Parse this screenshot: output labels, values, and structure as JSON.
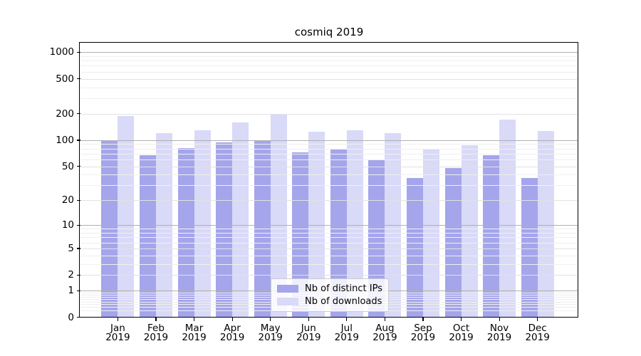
{
  "chart": {
    "title": "cosmiq 2019"
  },
  "chart_data": {
    "type": "bar",
    "title": "cosmiq 2019",
    "categories": [
      "Jan",
      "Feb",
      "Mar",
      "Apr",
      "May",
      "Jun",
      "Jul",
      "Aug",
      "Sep",
      "Oct",
      "Nov",
      "Dec"
    ],
    "category_year": "2019",
    "series": [
      {
        "name": "Nb of distinct IPs",
        "color": "#a5a5ec",
        "values": [
          100,
          67,
          81,
          94,
          98,
          73,
          80,
          60,
          37,
          48,
          67,
          37
        ]
      },
      {
        "name": "Nb of downloads",
        "color": "#d9d9f8",
        "values": [
          190,
          120,
          130,
          158,
          200,
          124,
          129,
          120,
          78,
          88,
          170,
          128
        ]
      }
    ],
    "xlabel": "",
    "ylabel": "",
    "yscale": "log1p",
    "ylim": [
      0,
      1000
    ],
    "y_ticks": [
      0,
      1,
      2,
      5,
      10,
      20,
      50,
      100,
      200,
      500,
      1000
    ],
    "y_major_gridlines": [
      1,
      10,
      100,
      1000
    ],
    "y_mid_gridlines": [
      2,
      5,
      20,
      50,
      200,
      500
    ],
    "y_minor_gridlines": [
      0.2,
      0.3,
      0.4,
      0.5,
      0.6,
      0.7,
      0.8,
      0.9,
      3,
      4,
      6,
      7,
      8,
      9,
      30,
      40,
      60,
      70,
      80,
      90,
      300,
      400,
      600,
      700,
      800,
      900
    ],
    "legend_position": "lower center",
    "grid": "on, drawn above bars",
    "background_color": "#ffffff",
    "spine_color": "#000000",
    "major_grid_color": "#b0b0b0",
    "minor_grid_color": "#efefef",
    "legend_border_color": "#cccccc"
  }
}
